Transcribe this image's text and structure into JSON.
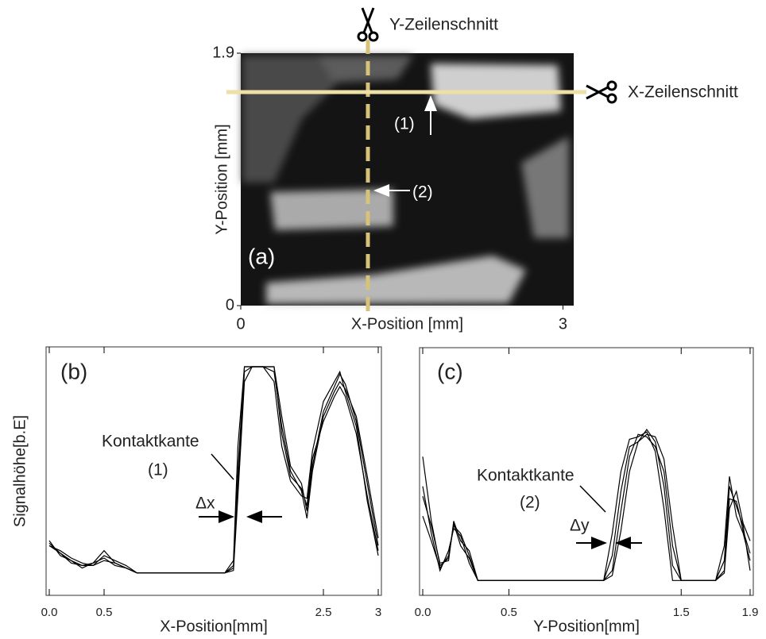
{
  "chart_data": [
    {
      "type": "image",
      "xlabel": "X-Position [mm]",
      "ylabel": "Y-Position [mm]",
      "xlim": [
        0,
        3.1
      ],
      "ylim": [
        0,
        1.9
      ],
      "xticks": [
        0,
        3
      ],
      "yticks": [
        0,
        1.9
      ],
      "annotations": [
        "(a)",
        "Y-Zeilenschnitt",
        "X-Zeilenschnitt",
        "(1)",
        "(2)"
      ]
    },
    {
      "type": "line",
      "xlabel": "X-Position[mm]",
      "ylabel": "Signalhöhe[b.E]",
      "xlim": [
        0,
        3
      ],
      "ylim": [
        0,
        10
      ],
      "xticks": [
        {
          "value": 0,
          "label": "0.0"
        },
        0.5,
        2.5,
        3
      ],
      "annotations": [
        "(b)",
        "Kontaktkante",
        "(1)",
        "Δx"
      ],
      "x": [
        0,
        0.1,
        0.2,
        0.3,
        0.4,
        0.5,
        0.6,
        0.7,
        0.8,
        0.9,
        1.0,
        1.1,
        1.2,
        1.3,
        1.4,
        1.5,
        1.6,
        1.68,
        1.72,
        1.78,
        1.85,
        1.95,
        2.05,
        2.12,
        2.2,
        2.3,
        2.35,
        2.4,
        2.5,
        2.6,
        2.65,
        2.7,
        2.8,
        2.9,
        3.0
      ],
      "series": [
        {
          "color": "#000000",
          "values": [
            2.1,
            1.7,
            1.4,
            1.2,
            1.3,
            1.8,
            1.3,
            1.1,
            0.9,
            0.9,
            0.9,
            0.9,
            0.9,
            0.9,
            0.9,
            0.9,
            0.9,
            1.2,
            5.0,
            9.2,
            9.2,
            9.2,
            9.2,
            6.5,
            4.8,
            4.3,
            3.6,
            5.5,
            7.0,
            8.0,
            8.4,
            8.0,
            6.5,
            4.0,
            1.8
          ]
        },
        {
          "color": "#000000",
          "values": [
            2.0,
            1.8,
            1.5,
            1.3,
            1.2,
            1.6,
            1.4,
            1.2,
            0.9,
            0.9,
            0.9,
            0.9,
            0.9,
            0.9,
            0.9,
            0.9,
            0.9,
            1.0,
            4.0,
            8.6,
            9.2,
            9.2,
            9.2,
            7.2,
            5.2,
            4.5,
            3.4,
            5.2,
            7.4,
            8.4,
            8.9,
            8.5,
            7.0,
            4.5,
            2.0
          ]
        },
        {
          "color": "#000000",
          "values": [
            2.2,
            1.6,
            1.4,
            1.1,
            1.3,
            1.5,
            1.2,
            1.1,
            0.9,
            0.9,
            0.9,
            0.9,
            0.9,
            0.9,
            0.9,
            0.9,
            0.9,
            1.4,
            6.0,
            9.2,
            9.2,
            9.2,
            8.6,
            6.0,
            4.6,
            4.0,
            3.9,
            5.8,
            7.8,
            8.6,
            9.0,
            8.2,
            6.8,
            3.8,
            1.6
          ]
        },
        {
          "color": "#000000",
          "values": [
            2.0,
            1.7,
            1.3,
            1.2,
            1.2,
            1.4,
            1.3,
            1.1,
            0.9,
            0.9,
            0.9,
            0.9,
            0.9,
            0.9,
            0.9,
            0.9,
            0.9,
            1.1,
            4.6,
            9.0,
            9.2,
            9.2,
            9.0,
            6.8,
            5.0,
            4.2,
            3.1,
            5.0,
            7.2,
            8.2,
            8.6,
            8.3,
            7.2,
            4.8,
            2.3
          ]
        }
      ]
    },
    {
      "type": "line",
      "xlabel": "Y-Position[mm]",
      "xlim": [
        0,
        1.9
      ],
      "ylim": [
        0,
        10
      ],
      "xticks": [
        {
          "value": 0,
          "label": "0.0"
        },
        0.5,
        1.5,
        1.9
      ],
      "annotations": [
        "(c)",
        "Kontaktkante",
        "(2)",
        "Δy"
      ],
      "x": [
        0,
        0.05,
        0.1,
        0.15,
        0.18,
        0.22,
        0.27,
        0.32,
        0.4,
        0.5,
        0.6,
        0.7,
        0.8,
        0.9,
        1.0,
        1.05,
        1.1,
        1.15,
        1.2,
        1.25,
        1.3,
        1.35,
        1.4,
        1.45,
        1.5,
        1.6,
        1.7,
        1.75,
        1.78,
        1.82,
        1.86,
        1.9
      ],
      "series": [
        {
          "color": "#000000",
          "values": [
            5.6,
            3.0,
            1.2,
            1.5,
            2.9,
            2.0,
            1.5,
            0.6,
            0.6,
            0.6,
            0.6,
            0.6,
            0.6,
            0.6,
            0.6,
            0.6,
            2.5,
            5.0,
            6.3,
            6.4,
            6.6,
            5.8,
            3.5,
            0.6,
            0.6,
            0.6,
            0.6,
            2.0,
            4.8,
            3.2,
            2.5,
            1.4
          ]
        },
        {
          "color": "#000000",
          "values": [
            4.4,
            2.5,
            1.0,
            1.8,
            2.7,
            2.4,
            1.3,
            0.6,
            0.6,
            0.6,
            0.6,
            0.6,
            0.6,
            0.6,
            0.6,
            0.6,
            1.6,
            4.2,
            6.0,
            6.2,
            6.7,
            6.2,
            4.4,
            1.2,
            0.6,
            0.6,
            0.6,
            1.4,
            4.4,
            3.6,
            2.8,
            1.0
          ]
        },
        {
          "color": "#000000",
          "values": [
            4.0,
            2.8,
            1.3,
            1.4,
            3.0,
            2.2,
            1.8,
            0.6,
            0.6,
            0.6,
            0.6,
            0.6,
            0.6,
            0.6,
            0.6,
            0.6,
            1.0,
            3.4,
            5.6,
            6.5,
            6.4,
            6.0,
            5.0,
            2.0,
            0.6,
            0.6,
            0.6,
            1.0,
            3.9,
            3.8,
            2.6,
            1.7
          ]
        },
        {
          "color": "#000000",
          "values": [
            3.2,
            2.2,
            1.1,
            1.6,
            2.8,
            2.5,
            1.6,
            0.6,
            0.6,
            0.6,
            0.6,
            0.6,
            0.6,
            0.6,
            0.6,
            0.6,
            0.8,
            2.6,
            5.0,
            6.2,
            6.5,
            6.4,
            5.5,
            2.8,
            0.6,
            0.6,
            0.6,
            0.9,
            3.5,
            4.2,
            2.9,
            2.2
          ]
        }
      ]
    }
  ]
}
